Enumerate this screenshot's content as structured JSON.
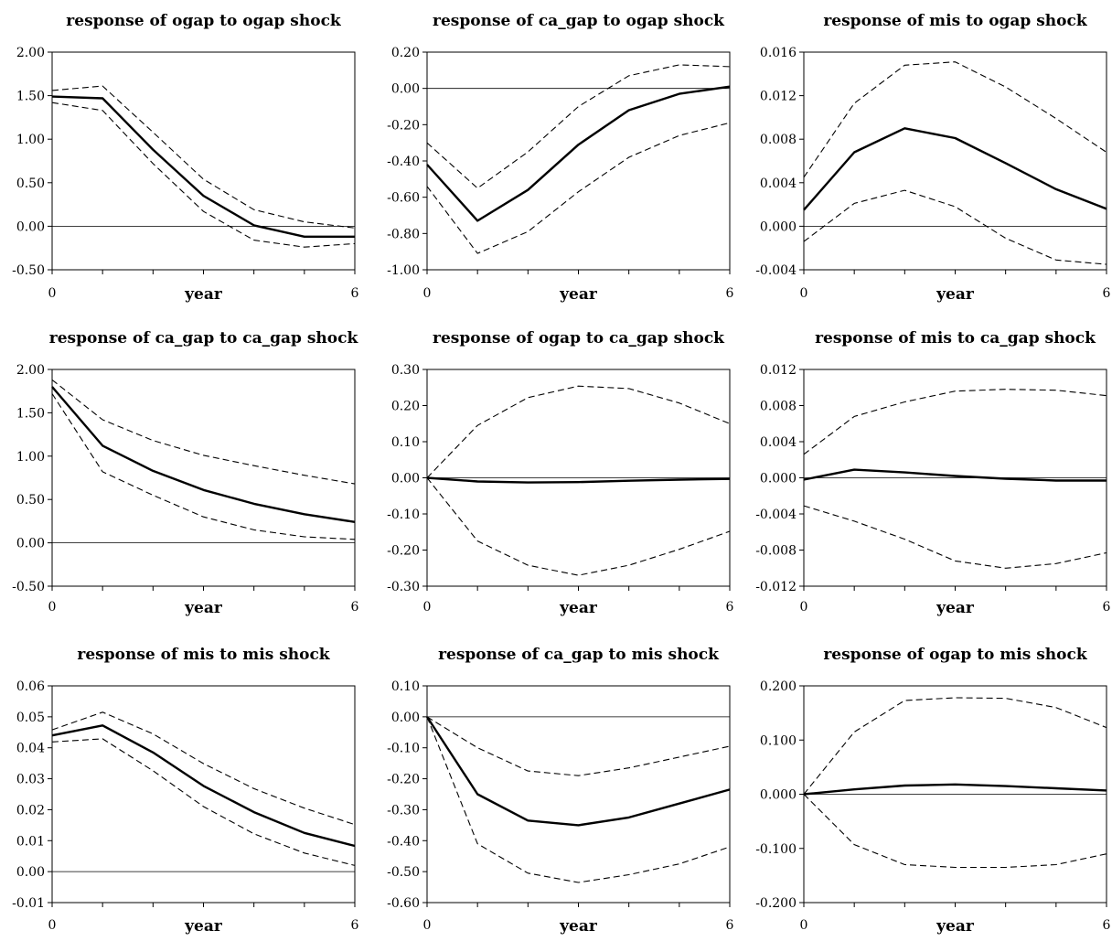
{
  "chart_data": [
    {
      "type": "line",
      "title": "response of ogap to ogap shock",
      "xlabel": "year",
      "ylabel": "",
      "x": [
        0,
        1,
        2,
        3,
        4,
        5,
        6
      ],
      "xlim": [
        0,
        6
      ],
      "xticks": [
        "0",
        "year",
        "6"
      ],
      "ylim": [
        -0.5,
        2.0
      ],
      "yticks": [
        "2.00",
        "1.50",
        "1.00",
        "0.50",
        "0.00",
        "-0.50"
      ],
      "series": [
        {
          "role": "response",
          "style": "solid",
          "values": [
            1.49,
            1.47,
            0.88,
            0.35,
            0.01,
            -0.12,
            -0.12
          ]
        },
        {
          "role": "upper",
          "style": "dashed",
          "values": [
            1.56,
            1.61,
            1.08,
            0.54,
            0.19,
            0.05,
            -0.02
          ]
        },
        {
          "role": "lower",
          "style": "dashed",
          "values": [
            1.42,
            1.33,
            0.72,
            0.17,
            -0.16,
            -0.24,
            -0.2
          ]
        }
      ]
    },
    {
      "type": "line",
      "title": "response of ca_gap to ogap shock",
      "xlabel": "year",
      "ylabel": "",
      "x": [
        0,
        1,
        2,
        3,
        4,
        5,
        6
      ],
      "xlim": [
        0,
        6
      ],
      "xticks": [
        "0",
        "year",
        "6"
      ],
      "ylim": [
        -1.0,
        0.2
      ],
      "yticks": [
        "0.20",
        "0.00",
        "-0.20",
        "-0.40",
        "-0.60",
        "-0.80",
        "-1.00"
      ],
      "series": [
        {
          "role": "response",
          "style": "solid",
          "values": [
            -0.42,
            -0.73,
            -0.56,
            -0.31,
            -0.12,
            -0.03,
            0.01
          ]
        },
        {
          "role": "upper",
          "style": "dashed",
          "values": [
            -0.3,
            -0.55,
            -0.35,
            -0.1,
            0.07,
            0.13,
            0.12
          ]
        },
        {
          "role": "lower",
          "style": "dashed",
          "values": [
            -0.54,
            -0.91,
            -0.79,
            -0.57,
            -0.38,
            -0.26,
            -0.19
          ]
        }
      ]
    },
    {
      "type": "line",
      "title": "response of mis to ogap shock",
      "xlabel": "year",
      "ylabel": "",
      "x": [
        0,
        1,
        2,
        3,
        4,
        5,
        6
      ],
      "xlim": [
        0,
        6
      ],
      "xticks": [
        "0",
        "year",
        "6"
      ],
      "ylim": [
        -0.004,
        0.016
      ],
      "yticks": [
        "0.016",
        "0.012",
        "0.008",
        "0.004",
        "0.000",
        "-0.004"
      ],
      "series": [
        {
          "role": "response",
          "style": "solid",
          "values": [
            0.0015,
            0.0068,
            0.009,
            0.0081,
            0.0058,
            0.0034,
            0.0016
          ]
        },
        {
          "role": "upper",
          "style": "dashed",
          "values": [
            0.0045,
            0.0113,
            0.0148,
            0.0151,
            0.0128,
            0.0099,
            0.0068
          ]
        },
        {
          "role": "lower",
          "style": "dashed",
          "values": [
            -0.0014,
            0.0021,
            0.0033,
            0.0018,
            -0.0011,
            -0.0031,
            -0.0035
          ]
        }
      ]
    },
    {
      "type": "line",
      "title": "response of ca_gap to ca_gap shock",
      "xlabel": "year",
      "ylabel": "",
      "x": [
        0,
        1,
        2,
        3,
        4,
        5,
        6
      ],
      "xlim": [
        0,
        6
      ],
      "xticks": [
        "0",
        "year",
        "6"
      ],
      "ylim": [
        -0.5,
        2.0
      ],
      "yticks": [
        "2.00",
        "1.50",
        "1.00",
        "0.50",
        "0.00",
        "-0.50"
      ],
      "series": [
        {
          "role": "response",
          "style": "solid",
          "values": [
            1.8,
            1.12,
            0.83,
            0.61,
            0.45,
            0.33,
            0.24
          ]
        },
        {
          "role": "upper",
          "style": "dashed",
          "values": [
            1.88,
            1.42,
            1.18,
            1.01,
            0.89,
            0.78,
            0.68
          ]
        },
        {
          "role": "lower",
          "style": "dashed",
          "values": [
            1.72,
            0.82,
            0.55,
            0.3,
            0.15,
            0.07,
            0.04
          ]
        }
      ]
    },
    {
      "type": "line",
      "title": "response of ogap to ca_gap shock",
      "xlabel": "year",
      "ylabel": "",
      "x": [
        0,
        1,
        2,
        3,
        4,
        5,
        6
      ],
      "xlim": [
        0,
        6
      ],
      "xticks": [
        "0",
        "year",
        "6"
      ],
      "ylim": [
        -0.3,
        0.3
      ],
      "yticks": [
        "0.30",
        "0.20",
        "0.10",
        "0.00",
        "-0.10",
        "-0.20",
        "-0.30"
      ],
      "series": [
        {
          "role": "response",
          "style": "solid",
          "values": [
            0.0,
            -0.01,
            -0.013,
            -0.012,
            -0.008,
            -0.005,
            -0.003
          ]
        },
        {
          "role": "upper",
          "style": "dashed",
          "values": [
            0.0,
            0.145,
            0.222,
            0.254,
            0.247,
            0.207,
            0.15
          ]
        },
        {
          "role": "lower",
          "style": "dashed",
          "values": [
            0.0,
            -0.175,
            -0.242,
            -0.27,
            -0.242,
            -0.198,
            -0.148
          ]
        }
      ]
    },
    {
      "type": "line",
      "title": "response of mis to ca_gap shock",
      "xlabel": "year",
      "ylabel": "",
      "x": [
        0,
        1,
        2,
        3,
        4,
        5,
        6
      ],
      "xlim": [
        0,
        6
      ],
      "xticks": [
        "0",
        "year",
        "6"
      ],
      "ylim": [
        -0.012,
        0.012
      ],
      "yticks": [
        "0.012",
        "0.008",
        "0.004",
        "0.000",
        "-0.004",
        "-0.008",
        "-0.012"
      ],
      "series": [
        {
          "role": "response",
          "style": "solid",
          "values": [
            -0.0002,
            0.0009,
            0.0006,
            0.0002,
            -0.0001,
            -0.0003,
            -0.0003
          ]
        },
        {
          "role": "upper",
          "style": "dashed",
          "values": [
            0.0026,
            0.0068,
            0.0084,
            0.0096,
            0.0098,
            0.0097,
            0.0091
          ]
        },
        {
          "role": "lower",
          "style": "dashed",
          "values": [
            -0.0031,
            -0.0048,
            -0.0068,
            -0.0092,
            -0.01,
            -0.0095,
            -0.0083
          ]
        }
      ]
    },
    {
      "type": "line",
      "title": "response of mis to mis shock",
      "xlabel": "year",
      "ylabel": "",
      "x": [
        0,
        1,
        2,
        3,
        4,
        5,
        6
      ],
      "xlim": [
        0,
        6
      ],
      "xticks": [
        "0",
        "year",
        "6"
      ],
      "ylim": [
        -0.01,
        0.06
      ],
      "yticks": [
        "0.06",
        "0.05",
        "0.04",
        "0.03",
        "0.02",
        "0.01",
        "0.00",
        "-0.01"
      ],
      "series": [
        {
          "role": "response",
          "style": "solid",
          "values": [
            0.044,
            0.0472,
            0.0385,
            0.0277,
            0.0192,
            0.0125,
            0.0083
          ]
        },
        {
          "role": "upper",
          "style": "dashed",
          "values": [
            0.0458,
            0.0515,
            0.0445,
            0.0349,
            0.0268,
            0.0205,
            0.0152
          ]
        },
        {
          "role": "lower",
          "style": "dashed",
          "values": [
            0.0419,
            0.0429,
            0.0326,
            0.021,
            0.0122,
            0.006,
            0.002
          ]
        }
      ]
    },
    {
      "type": "line",
      "title": "response of ca_gap to mis shock",
      "xlabel": "year",
      "ylabel": "",
      "x": [
        0,
        1,
        2,
        3,
        4,
        5,
        6
      ],
      "xlim": [
        0,
        6
      ],
      "xticks": [
        "0",
        "year",
        "6"
      ],
      "ylim": [
        -0.6,
        0.1
      ],
      "yticks": [
        "0.10",
        "0.00",
        "-0.10",
        "-0.20",
        "-0.30",
        "-0.40",
        "-0.50",
        "-0.60"
      ],
      "series": [
        {
          "role": "response",
          "style": "solid",
          "values": [
            0.0,
            -0.25,
            -0.335,
            -0.35,
            -0.325,
            -0.28,
            -0.235
          ]
        },
        {
          "role": "upper",
          "style": "dashed",
          "values": [
            0.0,
            -0.1,
            -0.175,
            -0.19,
            -0.165,
            -0.13,
            -0.095
          ]
        },
        {
          "role": "lower",
          "style": "dashed",
          "values": [
            0.0,
            -0.41,
            -0.505,
            -0.535,
            -0.51,
            -0.475,
            -0.42
          ]
        }
      ]
    },
    {
      "type": "line",
      "title": "response of ogap to mis shock",
      "xlabel": "year",
      "ylabel": "",
      "x": [
        0,
        1,
        2,
        3,
        4,
        5,
        6
      ],
      "xlim": [
        0,
        6
      ],
      "xticks": [
        "0",
        "year",
        "6"
      ],
      "ylim": [
        -0.2,
        0.2
      ],
      "yticks": [
        "0.200",
        "0.100",
        "0.000",
        "-0.100",
        "-0.200"
      ],
      "series": [
        {
          "role": "response",
          "style": "solid",
          "values": [
            0.0,
            0.009,
            0.016,
            0.018,
            0.015,
            0.011,
            0.007
          ]
        },
        {
          "role": "upper",
          "style": "dashed",
          "values": [
            0.0,
            0.115,
            0.173,
            0.178,
            0.177,
            0.16,
            0.123
          ]
        },
        {
          "role": "lower",
          "style": "dashed",
          "values": [
            0.0,
            -0.093,
            -0.13,
            -0.135,
            -0.135,
            -0.13,
            -0.11
          ]
        }
      ]
    }
  ]
}
